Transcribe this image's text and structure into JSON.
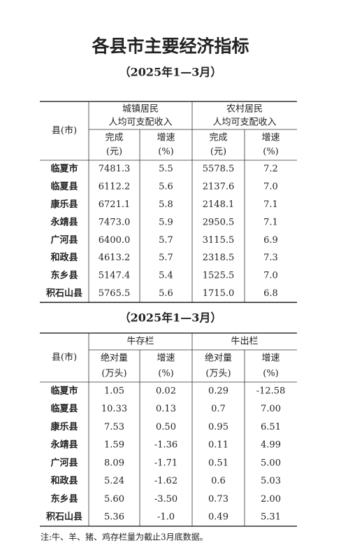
{
  "title": "各县市主要经济指标",
  "table1": {
    "subtitle": "（2025年1—3月）",
    "row_header": "县(市)",
    "groups": [
      {
        "label": [
          "城镇居民",
          "人均可支配收入"
        ],
        "columns": [
          [
            "完成",
            "(元)"
          ],
          [
            "增速",
            "(%)"
          ]
        ]
      },
      {
        "label": [
          "农村居民",
          "人均可支配收入"
        ],
        "columns": [
          [
            "完成",
            "(元)"
          ],
          [
            "增速",
            "(%)"
          ]
        ]
      }
    ],
    "rows": [
      [
        "临夏市",
        "7481.3",
        "5.5",
        "5578.5",
        "7.2"
      ],
      [
        "临夏县",
        "6112.2",
        "5.6",
        "2137.6",
        "7.0"
      ],
      [
        "康乐县",
        "6721.1",
        "5.8",
        "2148.1",
        "7.1"
      ],
      [
        "永靖县",
        "7473.0",
        "5.9",
        "2950.5",
        "7.1"
      ],
      [
        "广河县",
        "6400.0",
        "5.7",
        "3115.5",
        "6.9"
      ],
      [
        "和政县",
        "4613.2",
        "5.7",
        "2318.5",
        "7.3"
      ],
      [
        "东乡县",
        "5147.4",
        "5.4",
        "1525.5",
        "7.0"
      ],
      [
        "积石山县",
        "5765.5",
        "5.6",
        "1715.0",
        "6.8"
      ]
    ]
  },
  "table2": {
    "subtitle": "（2025年1—3月）",
    "row_header": "县(市)",
    "groups": [
      {
        "label": [
          "牛存栏"
        ],
        "columns": [
          [
            "绝对量",
            "(万头)"
          ],
          [
            "增速",
            "(%)"
          ]
        ]
      },
      {
        "label": [
          "牛出栏"
        ],
        "columns": [
          [
            "绝对量",
            "(万头)"
          ],
          [
            "增速",
            "(%)"
          ]
        ]
      }
    ],
    "rows": [
      [
        "临夏市",
        "1.05",
        "0.02",
        "0.29",
        "-12.58"
      ],
      [
        "临夏县",
        "10.33",
        "0.13",
        "0.7",
        "7.00"
      ],
      [
        "康乐县",
        "7.53",
        "0.50",
        "0.95",
        "6.51"
      ],
      [
        "永靖县",
        "1.59",
        "-1.36",
        "0.11",
        "4.99"
      ],
      [
        "广河县",
        "8.09",
        "-1.71",
        "0.51",
        "5.00"
      ],
      [
        "和政县",
        "5.24",
        "-1.62",
        "0.6",
        "5.03"
      ],
      [
        "东乡县",
        "5.60",
        "-3.50",
        "0.73",
        "2.00"
      ],
      [
        "积石山县",
        "5.36",
        "-1.0",
        "0.49",
        "5.31"
      ]
    ]
  },
  "note": "注:牛、羊、猪、鸡存栏量为截止3月底数据。"
}
